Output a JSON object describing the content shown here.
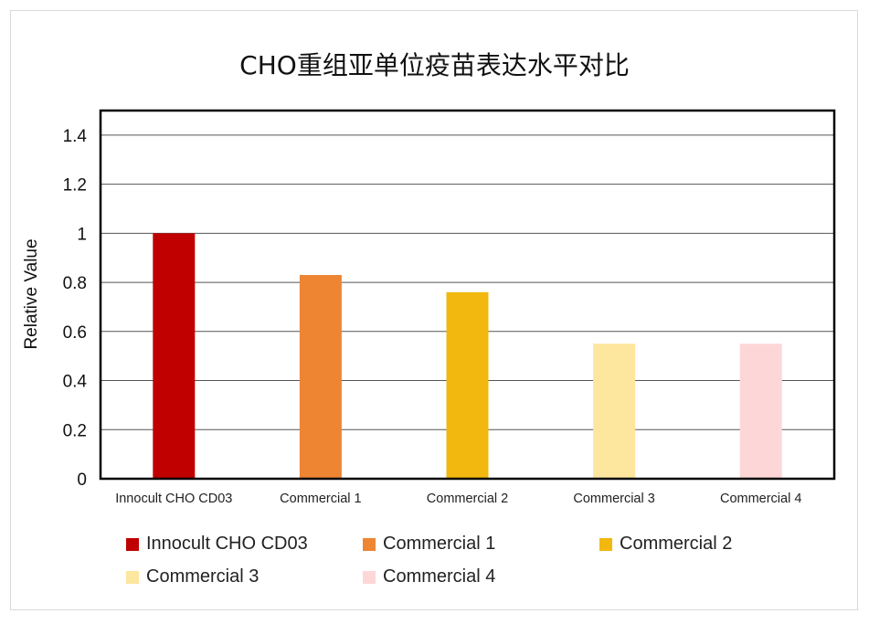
{
  "chart_data": {
    "type": "bar",
    "title": "CHO重组亚单位疫苗表达水平对比",
    "ylabel": "Relative Value",
    "xlabel": "",
    "categories": [
      "Innocult CHO CD03",
      "Commercial 1",
      "Commercial 2",
      "Commercial 3",
      "Commercial 4"
    ],
    "values": [
      1.0,
      0.83,
      0.76,
      0.55,
      0.55
    ],
    "colors": [
      "#c00000",
      "#ee8533",
      "#f2b80f",
      "#fde69d",
      "#fdd7d7"
    ],
    "ylim": [
      0,
      1.4
    ],
    "yticks": [
      "0",
      "0.2",
      "0.4",
      "0.6",
      "0.8",
      "1",
      "1.2",
      "1.4"
    ],
    "grid": true,
    "legend": {
      "position": "bottom",
      "entries": [
        "Innocult CHO CD03",
        "Commercial 1",
        "Commercial 2",
        "Commercial 3",
        "Commercial 4"
      ]
    }
  }
}
